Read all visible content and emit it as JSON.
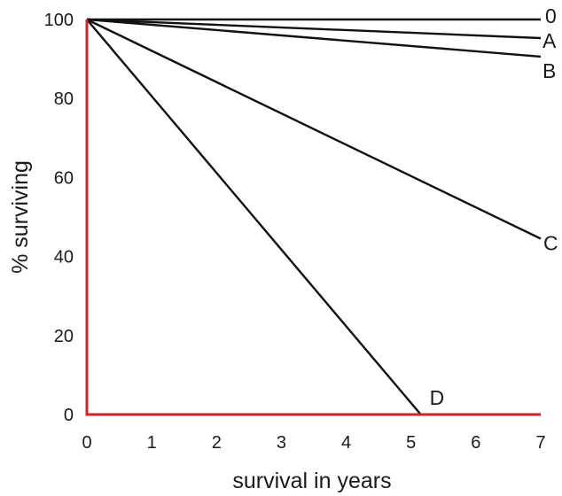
{
  "chart_data": {
    "type": "line",
    "title": "",
    "xlabel": "survival in years",
    "ylabel": "% surviving",
    "xlim": [
      0,
      7
    ],
    "ylim": [
      0,
      100
    ],
    "xticks": [
      "0",
      "1",
      "2",
      "3",
      "4",
      "5",
      "6",
      "7"
    ],
    "yticks": [
      "0",
      "20",
      "40",
      "60",
      "80",
      "100"
    ],
    "axis_color": "#d3232a",
    "line_color": "#111111",
    "grid": false,
    "series": [
      {
        "name": "0",
        "x": [
          0,
          7
        ],
        "y": [
          100,
          100
        ]
      },
      {
        "name": "A",
        "x": [
          0,
          7
        ],
        "y": [
          100,
          95.3
        ]
      },
      {
        "name": "B",
        "x": [
          0,
          7
        ],
        "y": [
          100,
          90.6
        ]
      },
      {
        "name": "C",
        "x": [
          0,
          7
        ],
        "y": [
          100,
          44.5
        ]
      },
      {
        "name": "D",
        "x": [
          0,
          5.15
        ],
        "y": [
          100,
          0
        ]
      }
    ]
  }
}
